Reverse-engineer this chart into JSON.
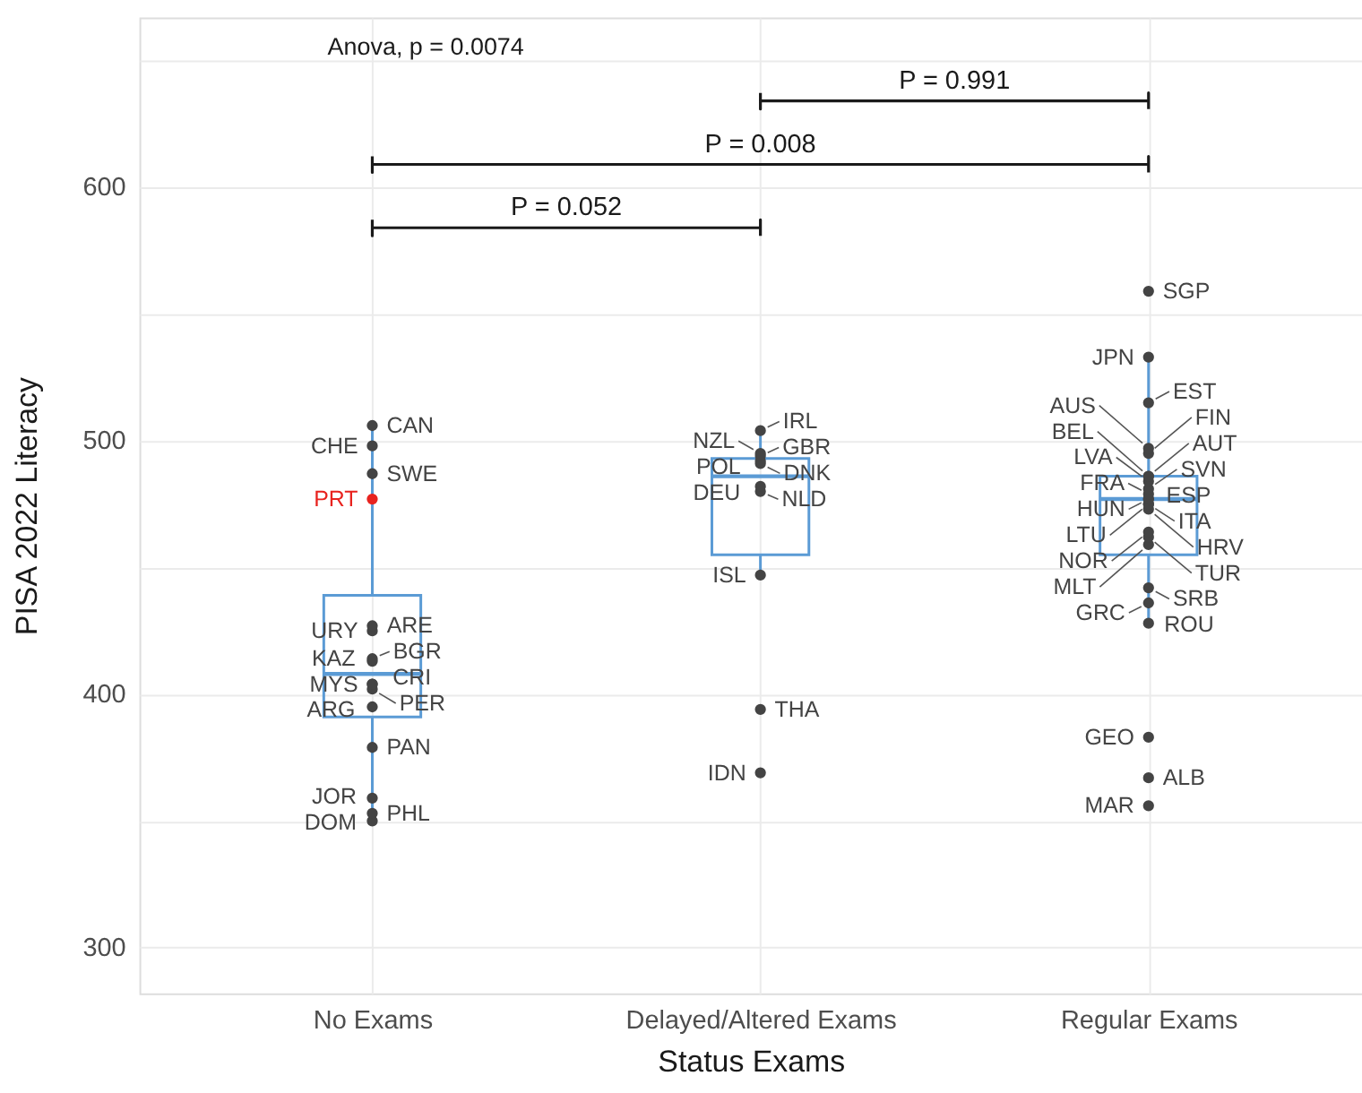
{
  "chart_data": {
    "type": "box",
    "xlabel": "Status Exams",
    "ylabel": "PISA 2022 Literacy",
    "categories": [
      "No Exams",
      "Delayed/Altered Exams",
      "Regular Exams"
    ],
    "ylim": [
      282,
      667
    ],
    "yticks": [
      300,
      {
        "value": 350,
        "label": null
      },
      400,
      {
        "value": 450,
        "label": null
      },
      500,
      {
        "value": 550,
        "label": null
      },
      600,
      {
        "value": 650,
        "label": null
      }
    ],
    "grid": true,
    "annotations": [
      "Anova, p = 0.0074",
      "P = 0.052",
      "P = 0.008",
      "P = 0.991"
    ],
    "series": [
      {
        "type": "box",
        "color": "#5b9bd5",
        "boxes": [
          {
            "low": 350,
            "q1": 391,
            "median": 408,
            "q3": 439,
            "high": 506
          },
          {
            "low": 447,
            "q1": 455,
            "median": 486,
            "q3": 493,
            "high": 504
          },
          {
            "low": 428,
            "q1": 455,
            "median": 477,
            "q3": 486,
            "high": 533
          }
        ]
      },
      {
        "type": "scatter",
        "marker": "circle",
        "x": [
          "No Exams",
          "No Exams",
          "No Exams",
          "No Exams",
          "No Exams",
          "No Exams",
          "No Exams",
          "No Exams",
          "No Exams",
          "No Exams",
          "No Exams",
          "No Exams",
          "No Exams",
          "No Exams",
          "No Exams",
          "No Exams",
          "Delayed/Altered Exams",
          "Delayed/Altered Exams",
          "Delayed/Altered Exams",
          "Delayed/Altered Exams",
          "Delayed/Altered Exams",
          "Delayed/Altered Exams",
          "Delayed/Altered Exams",
          "Delayed/Altered Exams",
          "Delayed/Altered Exams",
          "Delayed/Altered Exams",
          "Regular Exams",
          "Regular Exams",
          "Regular Exams",
          "Regular Exams",
          "Regular Exams",
          "Regular Exams",
          "Regular Exams",
          "Regular Exams",
          "Regular Exams",
          "Regular Exams",
          "Regular Exams",
          "Regular Exams",
          "Regular Exams",
          "Regular Exams",
          "Regular Exams",
          "Regular Exams",
          "Regular Exams",
          "Regular Exams",
          "Regular Exams",
          "Regular Exams",
          "Regular Exams",
          "Regular Exams",
          "Regular Exams",
          "Regular Exams"
        ],
        "values": [
          506,
          498,
          487,
          477,
          427,
          425,
          414,
          413,
          404,
          404,
          402,
          395,
          379,
          359,
          353,
          350,
          504,
          494,
          495,
          492,
          491,
          482,
          480,
          447,
          394,
          369,
          559,
          533,
          515,
          495,
          497,
          486,
          481,
          486,
          484,
          479,
          475,
          475,
          477,
          464,
          477,
          473,
          459,
          462,
          436,
          442,
          428,
          383,
          367,
          356
        ],
        "value_labels": [
          "CAN",
          "CHE",
          "SWE",
          "PRT",
          "ARE",
          "URY",
          "BGR",
          "KAZ",
          "CRI",
          "MYS",
          "PER",
          "ARG",
          "PAN",
          "JOR",
          "PHL",
          "DOM",
          "IRL",
          "GBR",
          "NZL",
          "POL",
          "DNK",
          "DEU",
          "NLD",
          "ISL",
          "THA",
          "IDN",
          "SGP",
          "JPN",
          "EST",
          "FIN",
          "AUS",
          "BEL",
          "SVN",
          "AUT",
          "LVA",
          "FRA",
          "ITA",
          "LTU",
          "ESP",
          "NOR",
          "HUN",
          "HRV",
          "MLT",
          "TUR",
          "GRC",
          "SRB",
          "ROU",
          "GEO",
          "ALB",
          "MAR"
        ],
        "colors": [
          "#444444",
          "#444444",
          "#444444",
          "#e8231f",
          "#444444",
          "#444444",
          "#444444",
          "#444444",
          "#444444",
          "#444444",
          "#444444",
          "#444444",
          "#444444",
          "#444444",
          "#444444",
          "#444444",
          "#444444",
          "#444444",
          "#444444",
          "#444444",
          "#444444",
          "#444444",
          "#444444",
          "#444444",
          "#444444",
          "#444444",
          "#444444",
          "#444444",
          "#444444",
          "#444444",
          "#444444",
          "#444444",
          "#444444",
          "#444444",
          "#444444",
          "#444444",
          "#444444",
          "#444444",
          "#444444",
          "#444444",
          "#444444",
          "#444444",
          "#444444",
          "#444444",
          "#444444",
          "#444444",
          "#444444",
          "#444444",
          "#444444",
          "#444444"
        ]
      }
    ]
  }
}
